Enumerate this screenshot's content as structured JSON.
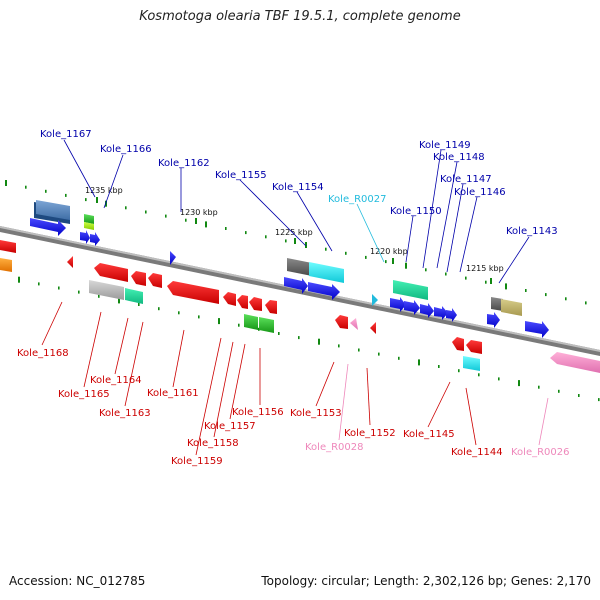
{
  "title": "Kosmotoga olearia TBF 19.5.1, complete genome",
  "footer": {
    "accession": "Accession: NC_012785",
    "topology": "Topology: circular; Length: 2,302,126 bp; Genes: 2,170"
  },
  "colors": {
    "forward_label": "#0000aa",
    "reverse_label": "#cc0000",
    "rna_label": "#ee88bb",
    "trna_label": "#22bbdd",
    "backbone": "#777777",
    "tick": "#118811"
  },
  "ticks": [
    {
      "label": "1235 kbp"
    },
    {
      "label": "1230 kbp"
    },
    {
      "label": "1225 kbp"
    },
    {
      "label": "1220 kbp"
    },
    {
      "label": "1215 kbp"
    }
  ],
  "forward_labels": [
    {
      "text": "Kole_1167",
      "type": "gene"
    },
    {
      "text": "Kole_1166",
      "type": "gene"
    },
    {
      "text": "Kole_1162",
      "type": "gene"
    },
    {
      "text": "Kole_1155",
      "type": "gene"
    },
    {
      "text": "Kole_1154",
      "type": "gene"
    },
    {
      "text": "Kole_R0027",
      "type": "trna"
    },
    {
      "text": "Kole_1150",
      "type": "gene"
    },
    {
      "text": "Kole_1149",
      "type": "gene"
    },
    {
      "text": "Kole_1148",
      "type": "gene"
    },
    {
      "text": "Kole_1147",
      "type": "gene"
    },
    {
      "text": "Kole_1146",
      "type": "gene"
    },
    {
      "text": "Kole_1143",
      "type": "gene"
    }
  ],
  "reverse_labels": [
    {
      "text": "Kole_1168",
      "type": "gene"
    },
    {
      "text": "Kole_1164",
      "type": "gene"
    },
    {
      "text": "Kole_1165",
      "type": "gene"
    },
    {
      "text": "Kole_1163",
      "type": "gene"
    },
    {
      "text": "Kole_1161",
      "type": "gene"
    },
    {
      "text": "Kole_1156",
      "type": "gene"
    },
    {
      "text": "Kole_1157",
      "type": "gene"
    },
    {
      "text": "Kole_1158",
      "type": "gene"
    },
    {
      "text": "Kole_1159",
      "type": "gene"
    },
    {
      "text": "Kole_1153",
      "type": "gene"
    },
    {
      "text": "Kole_R0028",
      "type": "rna"
    },
    {
      "text": "Kole_1152",
      "type": "gene"
    },
    {
      "text": "Kole_1145",
      "type": "gene"
    },
    {
      "text": "Kole_1144",
      "type": "gene"
    },
    {
      "text": "Kole_R0026",
      "type": "rna"
    }
  ]
}
